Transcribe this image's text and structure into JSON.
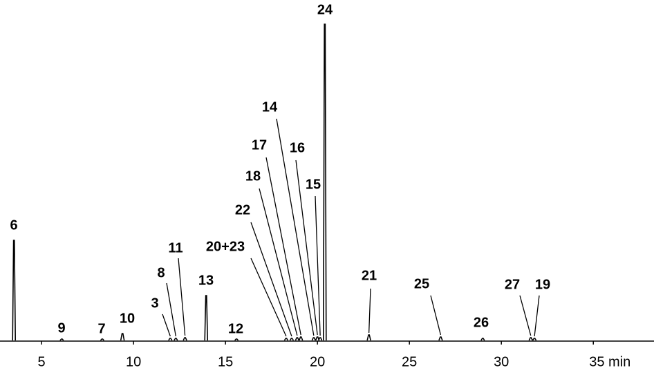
{
  "chart_data": {
    "type": "chromatogram",
    "labels": [
      "6",
      "9",
      "7",
      "10",
      "3",
      "8",
      "11",
      "13",
      "12",
      "20+23",
      "22",
      "18",
      "17",
      "14",
      "16",
      "15",
      "24",
      "21",
      "25",
      "26",
      "27",
      "19"
    ],
    "x": [
      3.5,
      6.1,
      8.3,
      9.4,
      12.0,
      12.3,
      12.8,
      13.95,
      15.6,
      18.3,
      18.6,
      18.9,
      19.1,
      19.8,
      20.0,
      20.15,
      20.4,
      22.8,
      26.7,
      28.99,
      31.6,
      31.8
    ],
    "values": [
      145,
      2,
      2,
      10,
      3,
      3,
      4,
      65,
      2,
      3,
      3,
      4,
      5,
      4,
      5,
      4,
      458,
      8,
      5,
      3,
      4,
      3
    ],
    "xlim": [
      2.74,
      38.3
    ],
    "ylim": [
      0,
      470
    ],
    "xticks": [
      5,
      10,
      15,
      20,
      25,
      30,
      {
        "value": 35,
        "label": "35 min"
      }
    ],
    "color": "#000000"
  }
}
